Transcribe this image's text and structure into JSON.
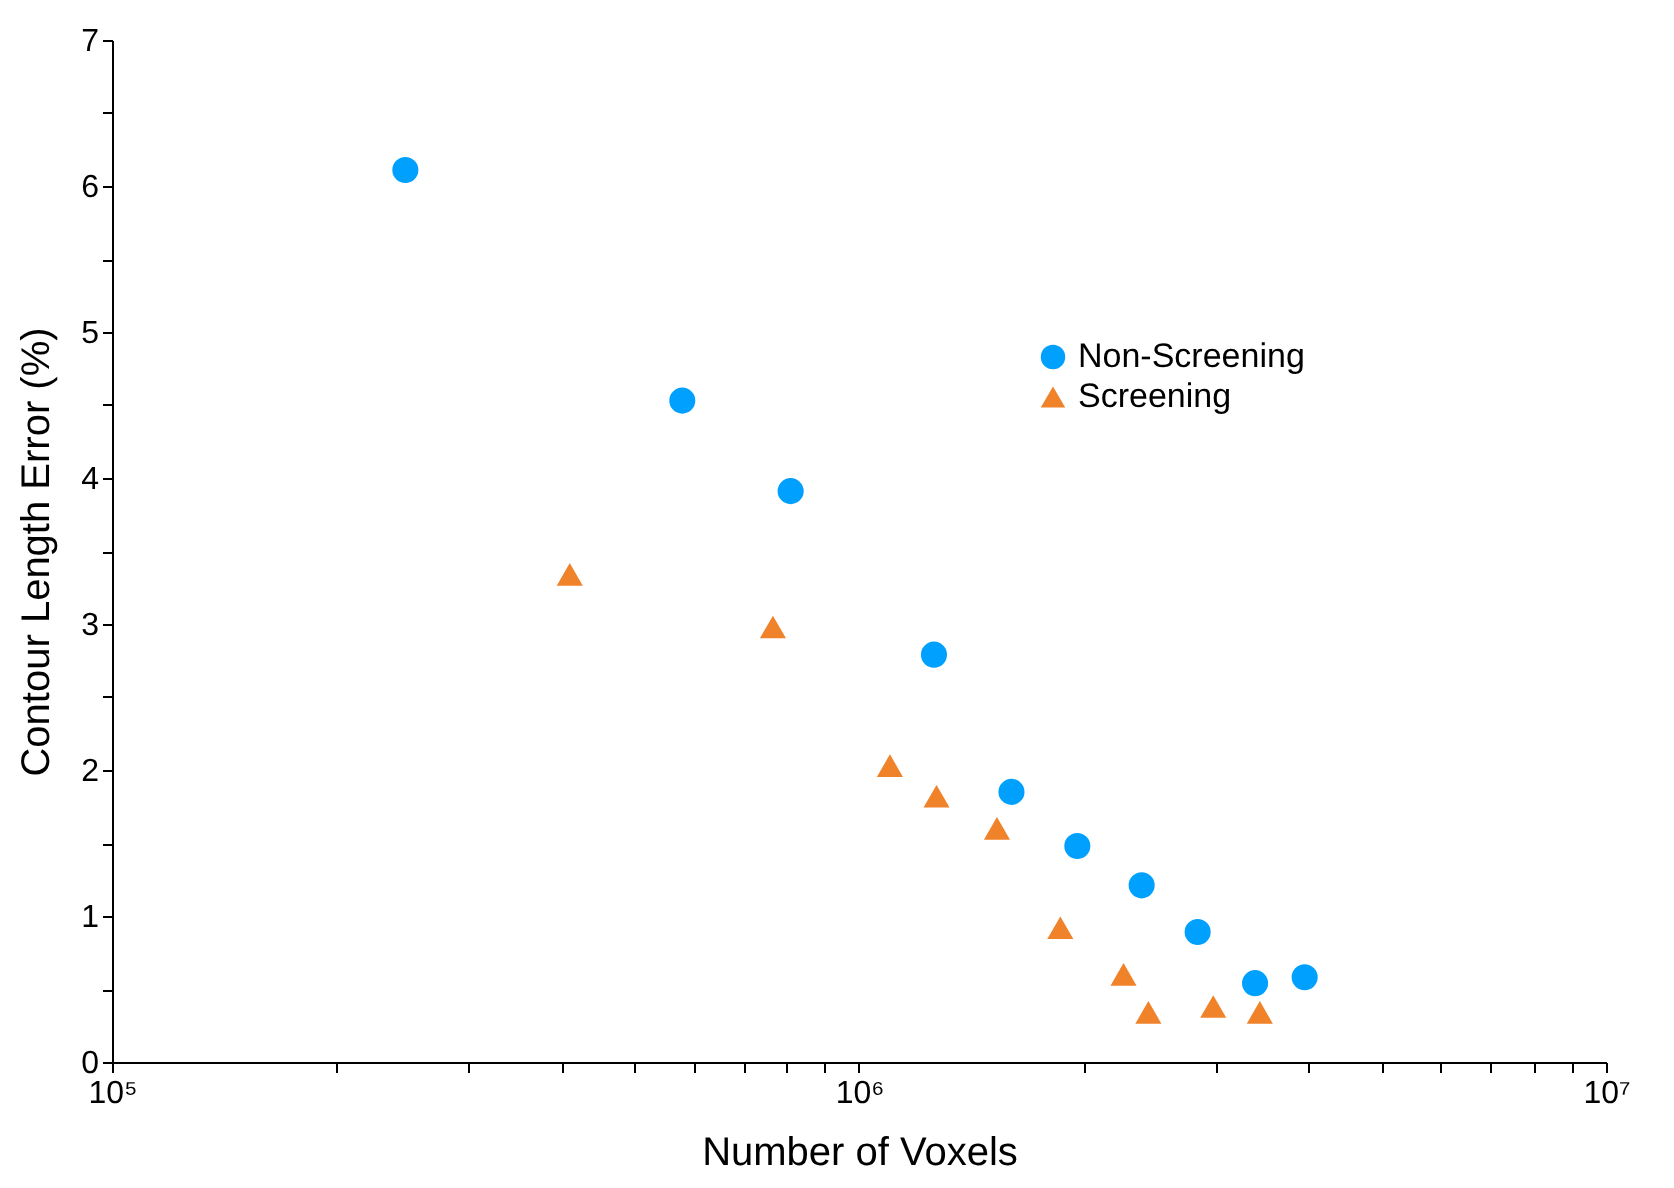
{
  "chart_data": {
    "type": "scatter",
    "xlabel": "Number of Voxels",
    "ylabel": "Contour Length Error (%)",
    "log": "x",
    "xlim": [
      100000,
      10000000
    ],
    "xticks": [
      {
        "value": 100000,
        "label": "10⁵"
      },
      {
        "value": 200000,
        "label": null
      },
      {
        "value": 300000,
        "label": null
      },
      {
        "value": 400000,
        "label": null
      },
      {
        "value": 500000,
        "label": null
      },
      {
        "value": 600000,
        "label": null
      },
      {
        "value": 700000,
        "label": null
      },
      {
        "value": 800000,
        "label": null
      },
      {
        "value": 900000,
        "label": null
      },
      {
        "value": 1000000,
        "label": "10⁶"
      },
      {
        "value": 2000000,
        "label": null
      },
      {
        "value": 3000000,
        "label": null
      },
      {
        "value": 4000000,
        "label": null
      },
      {
        "value": 5000000,
        "label": null
      },
      {
        "value": 6000000,
        "label": null
      },
      {
        "value": 7000000,
        "label": null
      },
      {
        "value": 8000000,
        "label": null
      },
      {
        "value": 9000000,
        "label": null
      },
      {
        "value": 10000000,
        "label": "10⁷"
      }
    ],
    "ylim": [
      0,
      7
    ],
    "yticks": [
      0,
      {
        "value": 0.5,
        "label": null
      },
      1,
      {
        "value": 1.5,
        "label": null
      },
      2,
      {
        "value": 2.5,
        "label": null
      },
      3,
      {
        "value": 3.5,
        "label": null
      },
      4,
      {
        "value": 4.5,
        "label": null
      },
      5,
      {
        "value": 5.5,
        "label": null
      },
      6,
      {
        "value": 6.5,
        "label": null
      },
      7
    ],
    "grid": false,
    "legend": "top right",
    "series": [
      {
        "name": "Non-Screening",
        "color": "#00a0ff",
        "marker": "circle",
        "x": [
          247000,
          580000,
          810000,
          1260000,
          1600000,
          1960000,
          2390000,
          2840000,
          3390000,
          3950000
        ],
        "values": [
          6.11,
          4.53,
          3.91,
          2.79,
          1.85,
          1.48,
          1.21,
          0.89,
          0.54,
          0.58
        ]
      },
      {
        "name": "Screening",
        "color": "#f0822a",
        "marker": "triangle",
        "x": [
          410000,
          767000,
          1100000,
          1270000,
          1530000,
          1860000,
          2260000,
          2440000,
          2980000,
          3440000
        ],
        "values": [
          3.34,
          2.98,
          2.03,
          1.82,
          1.6,
          0.92,
          0.6,
          0.34,
          0.38,
          0.34
        ]
      }
    ]
  }
}
